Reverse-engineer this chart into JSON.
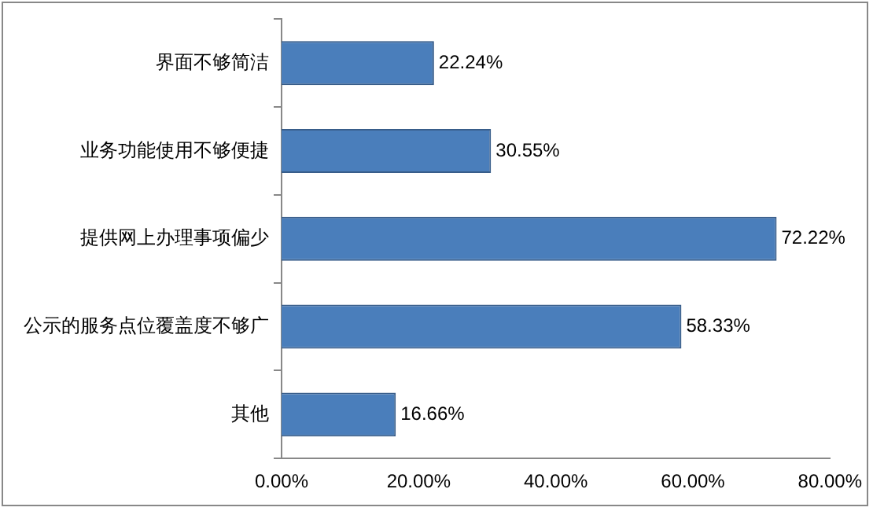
{
  "chart_data": {
    "type": "bar",
    "orientation": "horizontal",
    "categories": [
      "界面不够简洁",
      "业务功能使用不够便捷",
      "提供网上办理事项偏少",
      "公示的服务点位覆盖度不够广",
      "其他"
    ],
    "values": [
      22.24,
      30.55,
      72.22,
      58.33,
      16.66
    ],
    "value_labels": [
      "22.24%",
      "30.55%",
      "72.22%",
      "58.33%",
      "16.66%"
    ],
    "color": "#4a7ebb",
    "xlim": [
      0,
      80
    ],
    "xticks": [
      {
        "value": 0,
        "label": "0.00%"
      },
      {
        "value": 20,
        "label": "20.00%"
      },
      {
        "value": 40,
        "label": "40.00%"
      },
      {
        "value": 60,
        "label": "60.00%"
      },
      {
        "value": 80,
        "label": "80.00%"
      }
    ],
    "grid": false,
    "legend": false
  }
}
